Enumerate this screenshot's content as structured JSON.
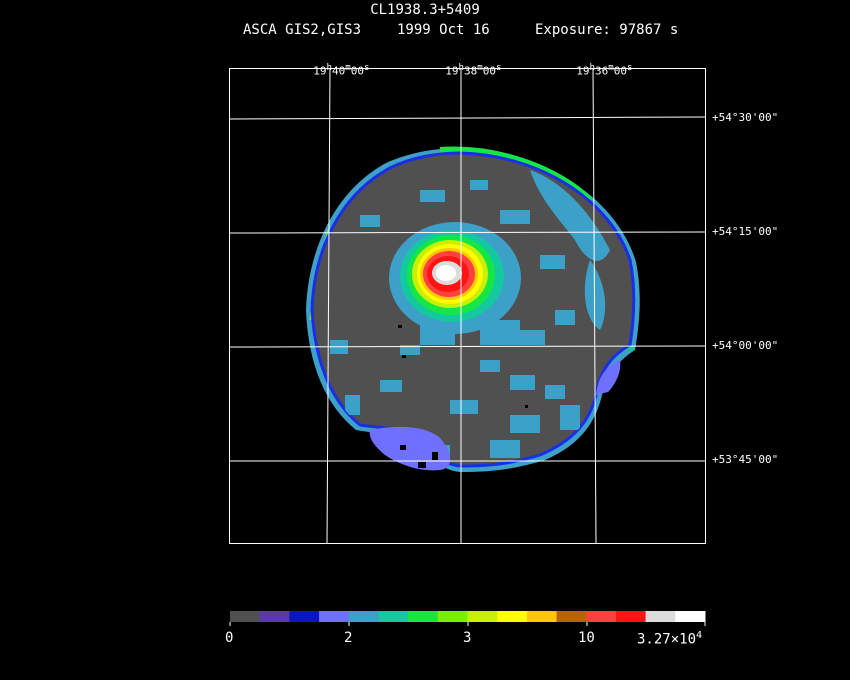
{
  "header": {
    "title": "CL1938.3+5409",
    "instrument": "ASCA GIS2,GIS3",
    "date": "1999 Oct 16",
    "exposure": "Exposure: 97867 s"
  },
  "ra_labels": [
    {
      "h": "19",
      "m": "40",
      "s": "00"
    },
    {
      "h": "19",
      "m": "38",
      "s": "00"
    },
    {
      "h": "19",
      "m": "36",
      "s": "00"
    }
  ],
  "dec_labels": [
    "+54°30'00\"",
    "+54°15'00\"",
    "+54°00'00\"",
    "+53°45'00\""
  ],
  "colorbar": {
    "colors": [
      "#505050",
      "#5a3aa8",
      "#0a14c8",
      "#7070ff",
      "#3ca0c8",
      "#14c8a0",
      "#14e646",
      "#78f000",
      "#c8f000",
      "#ffff00",
      "#ffc800",
      "#b46400",
      "#ff4040",
      "#ff1414",
      "#dcdcdc",
      "#ffffff"
    ],
    "ticks": [
      "0",
      "2",
      "3",
      "10"
    ],
    "max_base": "3.27×10",
    "max_exp": "4"
  }
}
